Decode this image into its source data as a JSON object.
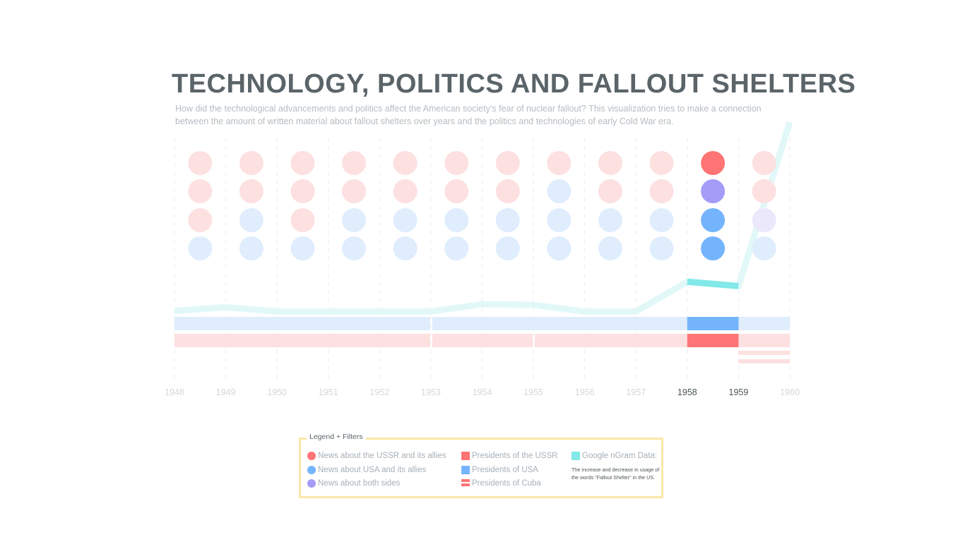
{
  "title": "TECHNOLOGY, POLITICS AND FALLOUT SHELTERS",
  "subtitle": "How did the technological advancements and politics affect the American society’s fear of nuclear fallout? This visualization tries to make a connection between the amount of written material about fallout shelters over years and the politics and technologies of early Cold War era.",
  "colors": {
    "ussr": "#ff7474",
    "usa": "#74b4fc",
    "both": "#a59cf8",
    "ngram": "#82e8e8",
    "ussr_faded": "#fde0e0",
    "usa_faded": "#dfedfd",
    "both_faded": "#ebe8fc",
    "ngram_faded": "#e2f8f8"
  },
  "chart_data": {
    "type": "scatter",
    "years": [
      "1948",
      "1949",
      "1950",
      "1951",
      "1952",
      "1953",
      "1954",
      "1955",
      "1956",
      "1957",
      "1958",
      "1959",
      "1960"
    ],
    "highlighted_year": "1958",
    "news_dots": [
      {
        "year": "1948",
        "categories": [
          "ussr",
          "ussr",
          "ussr",
          "usa"
        ]
      },
      {
        "year": "1949",
        "categories": [
          "ussr",
          "ussr",
          "usa",
          "usa"
        ]
      },
      {
        "year": "1950",
        "categories": [
          "ussr",
          "ussr",
          "ussr",
          "usa"
        ]
      },
      {
        "year": "1951",
        "categories": [
          "ussr",
          "ussr",
          "usa",
          "usa"
        ]
      },
      {
        "year": "1952",
        "categories": [
          "ussr",
          "ussr",
          "usa",
          "usa"
        ]
      },
      {
        "year": "1953",
        "categories": [
          "ussr",
          "ussr",
          "usa",
          "usa"
        ]
      },
      {
        "year": "1954",
        "categories": [
          "ussr",
          "ussr",
          "usa",
          "usa"
        ]
      },
      {
        "year": "1955",
        "categories": [
          "ussr",
          "usa",
          "usa",
          "usa"
        ]
      },
      {
        "year": "1956",
        "categories": [
          "ussr",
          "ussr",
          "usa",
          "usa"
        ]
      },
      {
        "year": "1957",
        "categories": [
          "ussr",
          "ussr",
          "usa",
          "usa"
        ]
      },
      {
        "year": "1958",
        "categories": [
          "ussr",
          "both",
          "usa",
          "usa"
        ]
      },
      {
        "year": "1959",
        "categories": [
          "ussr",
          "ussr",
          "both",
          "usa"
        ]
      }
    ],
    "ngram": {
      "name": "Google nGram Data",
      "x": [
        1948,
        1949,
        1950,
        1951,
        1952,
        1953,
        1954,
        1955,
        1956,
        1957,
        1958,
        1959,
        1960
      ],
      "y": [
        0.4,
        1.0,
        0.3,
        0.3,
        0.3,
        0.3,
        1.5,
        1.4,
        0.3,
        0.3,
        5.2,
        4.5,
        31.5
      ],
      "ylim": [
        0,
        30
      ]
    },
    "usa_presidents": [
      {
        "start": 1948,
        "end": 1953
      },
      {
        "start": 1953,
        "end": 1961
      }
    ],
    "ussr_presidents": [
      {
        "start": 1948,
        "end": 1953
      },
      {
        "start": 1953,
        "end": 1955
      },
      {
        "start": 1955,
        "end": 1961
      }
    ],
    "cuba_presidents": [
      {
        "start": 1959,
        "end": 1961
      }
    ]
  },
  "legend": {
    "title": "Legend + Filters",
    "items": [
      {
        "label": "News about the USSR and its allies"
      },
      {
        "label": "News about USA and its allies"
      },
      {
        "label": "News about both sides"
      },
      {
        "label": "Presidents of the USSR"
      },
      {
        "label": "Presidents of USA"
      },
      {
        "label": "Presidents of Cuba"
      },
      {
        "label": "Google nGram Data:"
      }
    ],
    "ngram_note": "The increase and decrease in usage of the words \"Fallout Shelter\" in the US."
  }
}
